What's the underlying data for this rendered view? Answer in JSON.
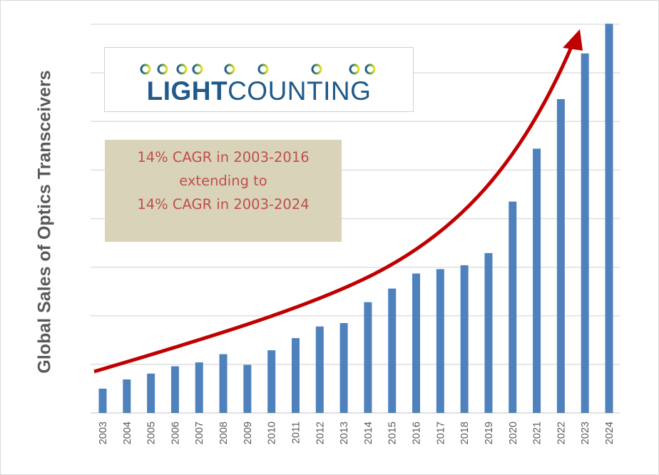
{
  "chart_data": {
    "type": "bar",
    "title": "",
    "xlabel": "",
    "ylabel": "Global Sales of Optics Transceivers",
    "categories": [
      "2003",
      "2004",
      "2005",
      "2006",
      "2007",
      "2008",
      "2009",
      "2010",
      "2011",
      "2012",
      "2013",
      "2014",
      "2015",
      "2016",
      "2017",
      "2018",
      "2019",
      "2020",
      "2021",
      "2022",
      "2023",
      "2024"
    ],
    "values": [
      0.5,
      0.69,
      0.81,
      0.96,
      1.04,
      1.21,
      0.99,
      1.29,
      1.54,
      1.78,
      1.85,
      2.28,
      2.56,
      2.87,
      2.96,
      3.04,
      3.29,
      4.35,
      5.44,
      6.46,
      7.4,
      8.01
    ],
    "ylim": [
      0,
      8
    ],
    "y_ticks_labeled": false,
    "grid": true,
    "bar_color": "#4f81bd",
    "trend_arrow_color": "#c00000",
    "annotation": [
      "14% CAGR in 2003-2016",
      "extending to",
      "14% CAGR in 2003-2024"
    ],
    "annotation_color": "#c0504d"
  },
  "logo": {
    "bold": "LIGHT",
    "regular": "COUNTING"
  }
}
